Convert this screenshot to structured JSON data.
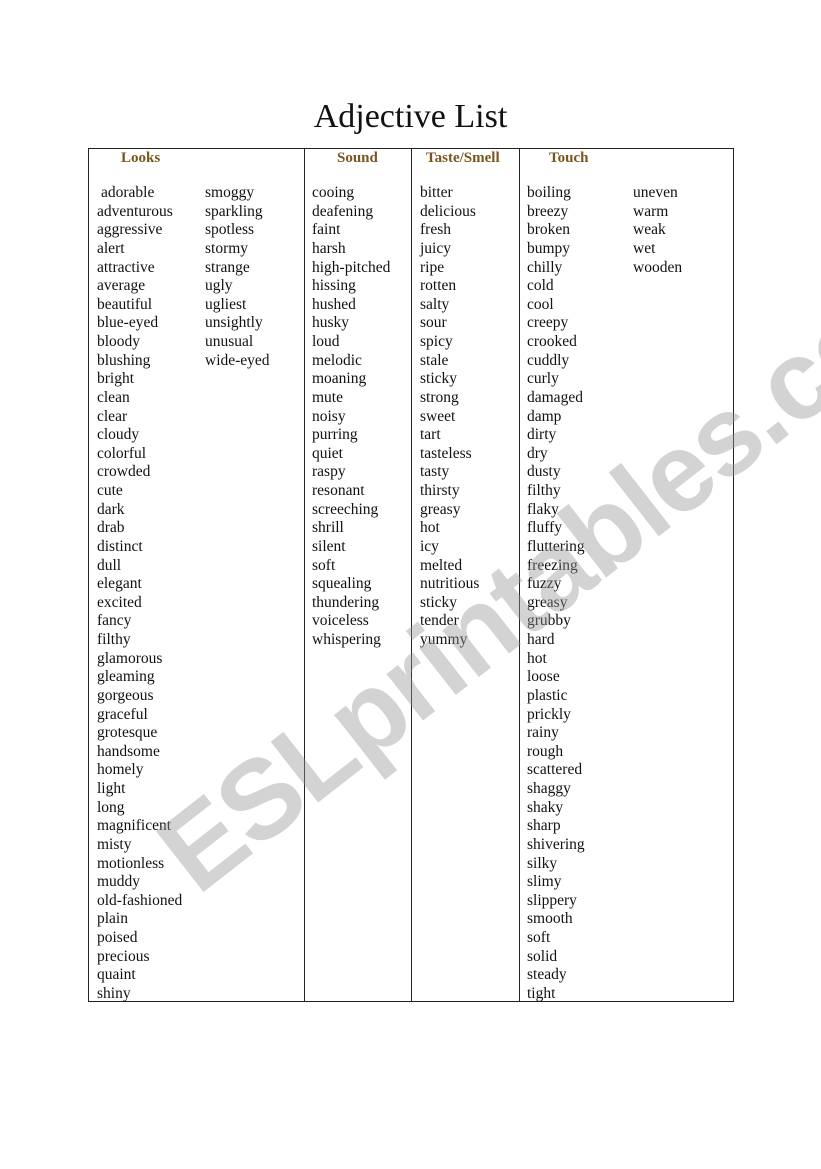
{
  "title": "Adjective List",
  "watermark": "ESLprintables.com",
  "colors": {
    "header": "#7a5520",
    "border": "#222222"
  },
  "columns": {
    "looks": {
      "header": "Looks",
      "words_1": [
        "adorable",
        "adventurous",
        "aggressive",
        "alert",
        "attractive",
        "average",
        "beautiful",
        "blue-eyed",
        "bloody",
        "blushing",
        "bright",
        "clean",
        "clear",
        "cloudy",
        "colorful",
        "crowded",
        "cute",
        "dark",
        "drab",
        "distinct",
        "dull",
        "elegant",
        "excited",
        "fancy",
        "filthy",
        "glamorous",
        "gleaming",
        "gorgeous",
        "graceful",
        "grotesque",
        "handsome",
        "homely",
        "light",
        "long",
        "magnificent",
        "misty",
        "motionless",
        "muddy",
        "old-fashioned",
        "plain",
        "poised",
        "precious",
        "quaint",
        "shiny"
      ],
      "words_2": [
        "smoggy",
        "sparkling",
        "spotless",
        "stormy",
        "strange",
        "ugly",
        "ugliest",
        "unsightly",
        "unusual",
        "wide-eyed"
      ]
    },
    "sound": {
      "header": "Sound",
      "words": [
        "cooing",
        "deafening",
        "faint",
        "harsh",
        "high-pitched",
        "hissing",
        "hushed",
        "husky",
        "loud",
        "melodic",
        "moaning",
        "mute",
        "noisy",
        "purring",
        "quiet",
        "raspy",
        "resonant",
        "screeching",
        "shrill",
        "silent",
        "soft",
        "squealing",
        "thundering",
        "voiceless",
        "whispering"
      ]
    },
    "taste": {
      "header": "Taste/Smell",
      "words": [
        "bitter",
        "delicious",
        "fresh",
        "juicy",
        "ripe",
        "rotten",
        "salty",
        "sour",
        "spicy",
        "stale",
        "sticky",
        "strong",
        "sweet",
        "tart",
        "tasteless",
        "tasty",
        "thirsty",
        "greasy",
        "hot",
        "icy",
        "melted",
        "nutritious",
        "sticky",
        "tender",
        "yummy"
      ]
    },
    "touch": {
      "header": "Touch",
      "words_1": [
        "boiling",
        "breezy",
        "broken",
        "bumpy",
        "chilly",
        "cold",
        "cool",
        "creepy",
        "crooked",
        "cuddly",
        "curly",
        "damaged",
        "damp",
        "dirty",
        "dry",
        "dusty",
        "filthy",
        "flaky",
        "fluffy",
        "fluttering",
        "freezing",
        "fuzzy",
        "greasy",
        "grubby",
        "hard",
        "hot",
        "loose",
        "plastic",
        "prickly",
        "rainy",
        "rough",
        "scattered",
        "shaggy",
        "shaky",
        "sharp",
        "shivering",
        "silky",
        "slimy",
        "slippery",
        "smooth",
        "soft",
        "solid",
        "steady",
        "tight"
      ],
      "words_2": [
        "uneven",
        "warm",
        "weak",
        "wet",
        "wooden"
      ]
    }
  }
}
